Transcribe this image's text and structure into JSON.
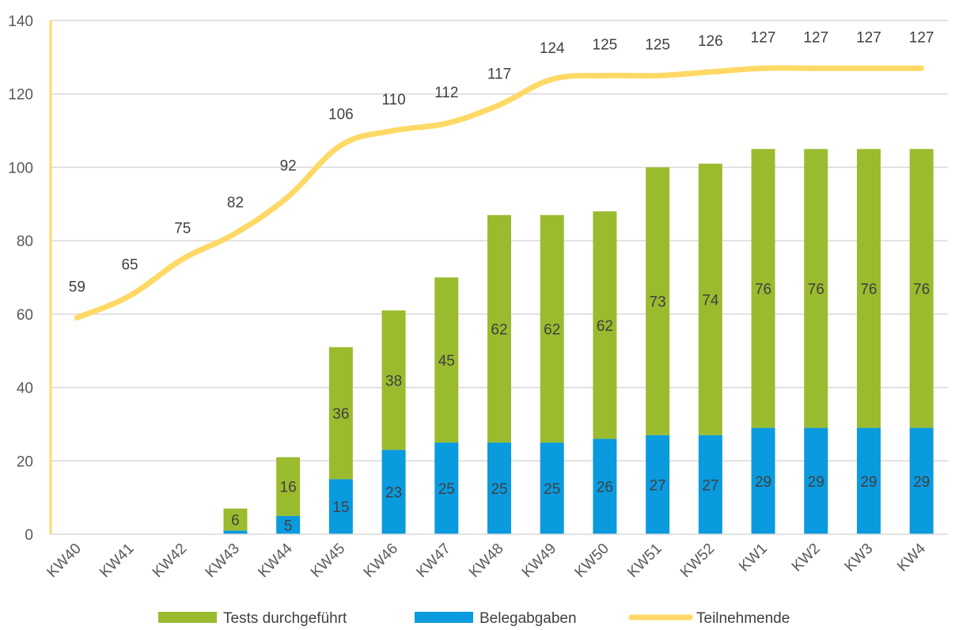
{
  "chart_data": {
    "type": "bar",
    "stacked": true,
    "categories": [
      "KW40",
      "KW41",
      "KW42",
      "KW43",
      "KW44",
      "KW45",
      "KW46",
      "KW47",
      "KW48",
      "KW49",
      "KW50",
      "KW51",
      "KW52",
      "KW1",
      "KW2",
      "KW3",
      "KW4"
    ],
    "series": [
      {
        "name": "Belegabgaben",
        "type": "bar",
        "color": "#0A9ADE",
        "values": [
          0,
          0,
          0,
          1,
          5,
          15,
          23,
          25,
          25,
          25,
          26,
          27,
          27,
          29,
          29,
          29,
          29
        ],
        "labels": [
          "",
          "",
          "",
          "",
          "5",
          "15",
          "23",
          "25",
          "25",
          "25",
          "26",
          "27",
          "27",
          "29",
          "29",
          "29",
          "29"
        ]
      },
      {
        "name": "Tests durchgeführt",
        "type": "bar",
        "color": "#9BBB2F",
        "values": [
          0,
          0,
          0,
          6,
          16,
          36,
          38,
          45,
          62,
          62,
          62,
          73,
          74,
          76,
          76,
          76,
          76
        ],
        "labels": [
          "",
          "",
          "",
          "6",
          "16",
          "36",
          "38",
          "45",
          "62",
          "62",
          "62",
          "73",
          "74",
          "76",
          "76",
          "76",
          "76"
        ]
      },
      {
        "name": "Teilnehmende",
        "type": "line",
        "color": "#FFD966",
        "values": [
          59,
          65,
          75,
          82,
          92,
          106,
          110,
          112,
          117,
          124,
          125,
          125,
          126,
          127,
          127,
          127,
          127
        ],
        "labels": [
          "59",
          "65",
          "75",
          "82",
          "92",
          "106",
          "110",
          "112",
          "117",
          "124",
          "125",
          "125",
          "126",
          "127",
          "127",
          "127",
          "127"
        ]
      }
    ],
    "yticks": [
      "0",
      "20",
      "40",
      "60",
      "80",
      "100",
      "120",
      "140"
    ],
    "ylim": [
      0,
      140
    ],
    "grid": true,
    "legend": {
      "position": "bottom",
      "items": [
        "Tests durchgeführt",
        "Belegabgaben",
        "Teilnehmende"
      ]
    },
    "axis_color": "#FFD966",
    "grid_color": "#D9D9D9"
  }
}
